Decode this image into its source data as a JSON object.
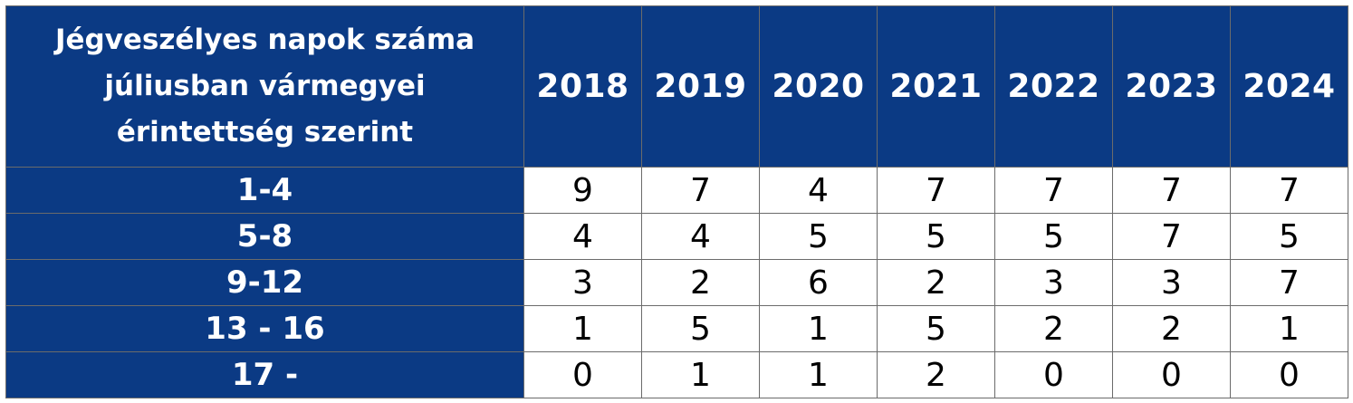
{
  "chart_data": {
    "type": "table",
    "corner_header": "Jégveszélyes napok száma\njúliusban vármegyei\nérintettség szerint",
    "columns": [
      "2018",
      "2019",
      "2020",
      "2021",
      "2022",
      "2023",
      "2024"
    ],
    "rows": [
      {
        "label": "1-4",
        "values": [
          9,
          7,
          4,
          7,
          7,
          7,
          7
        ]
      },
      {
        "label": "5-8",
        "values": [
          4,
          4,
          5,
          5,
          5,
          7,
          5
        ]
      },
      {
        "label": "9-12",
        "values": [
          3,
          2,
          6,
          2,
          3,
          3,
          7
        ]
      },
      {
        "label": "13 - 16",
        "values": [
          1,
          5,
          1,
          5,
          2,
          2,
          1
        ]
      },
      {
        "label": "17 -",
        "values": [
          0,
          1,
          1,
          2,
          0,
          0,
          0
        ]
      }
    ]
  },
  "colors": {
    "header_bg": "#0b3a84",
    "header_text": "#ffffff",
    "cell_bg": "#ffffff",
    "cell_text": "#000000",
    "border": "#6b6b6b"
  }
}
